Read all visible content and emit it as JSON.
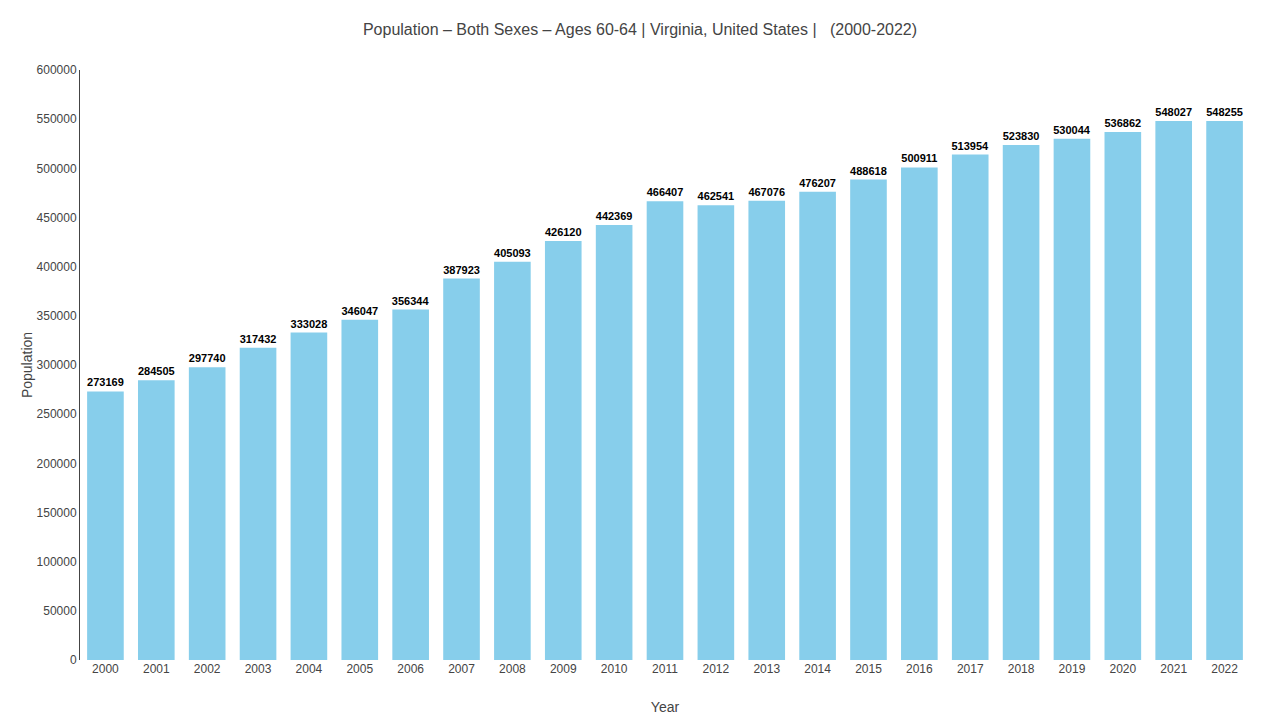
{
  "chart_data": {
    "type": "bar",
    "title": "Population – Both Sexes – Ages 60-64 | Virginia, United States |   (2000-2022)",
    "xlabel": "Year",
    "ylabel": "Population",
    "categories": [
      "2000",
      "2001",
      "2002",
      "2003",
      "2004",
      "2005",
      "2006",
      "2007",
      "2008",
      "2009",
      "2010",
      "2011",
      "2012",
      "2013",
      "2014",
      "2015",
      "2016",
      "2017",
      "2018",
      "2019",
      "2020",
      "2021",
      "2022"
    ],
    "values": [
      273169,
      284505,
      297740,
      317432,
      333028,
      346047,
      356344,
      387923,
      405093,
      426120,
      442369,
      466407,
      462541,
      467076,
      476207,
      488618,
      500911,
      513954,
      523830,
      530044,
      536862,
      548027,
      548255
    ],
    "color": "#87CEEB",
    "ylim": [
      0,
      600000
    ],
    "yticks": [
      0,
      50000,
      100000,
      150000,
      200000,
      250000,
      300000,
      350000,
      400000,
      450000,
      500000,
      550000,
      600000
    ],
    "grid": false,
    "data_labels": true
  }
}
